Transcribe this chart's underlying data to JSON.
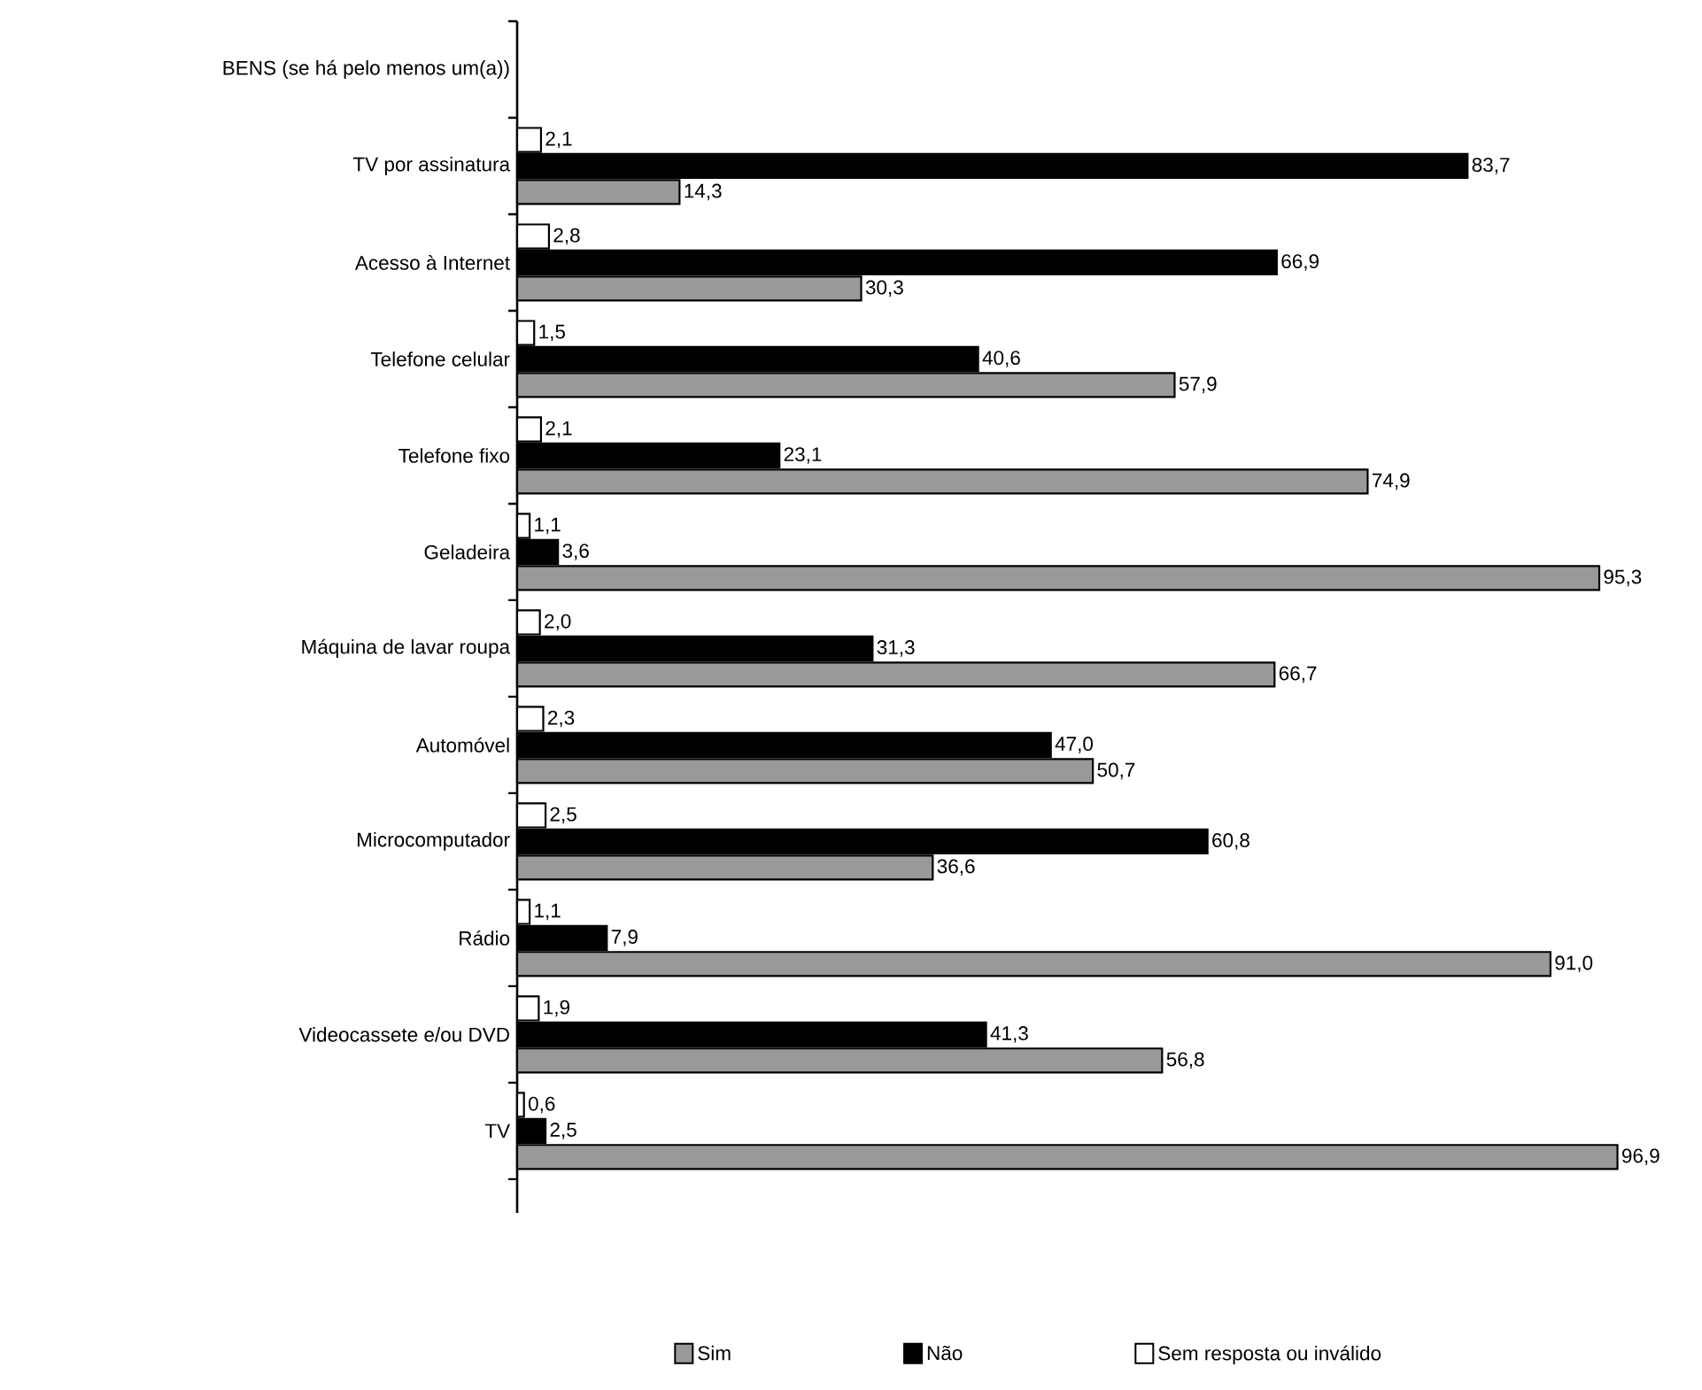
{
  "chart_data": {
    "type": "bar",
    "orientation": "horizontal",
    "legend": "bottom",
    "categories": [
      "BENS (se há pelo menos um(a))",
      "TV por assinatura",
      "Acesso à Internet",
      "Telefone celular",
      "Telefone fixo",
      "Geladeira",
      "Máquina de lavar roupa",
      "Automóvel",
      "Microcomputador",
      "Rádio",
      "Videocassete e/ou DVD",
      "TV"
    ],
    "series": [
      {
        "name": "Sim",
        "color": "#999999",
        "values": [
          null,
          14.3,
          30.3,
          57.9,
          74.9,
          95.3,
          66.7,
          50.7,
          36.6,
          91.0,
          56.8,
          96.9
        ],
        "value_labels": [
          null,
          "14,3",
          "30,3",
          "57,9",
          "74,9",
          "95,3",
          "66,7",
          "50,7",
          "36,6",
          "91,0",
          "56,8",
          "96,9"
        ]
      },
      {
        "name": "Não",
        "color": "#000000",
        "values": [
          null,
          83.7,
          66.9,
          40.6,
          23.1,
          3.6,
          31.3,
          47.0,
          60.8,
          7.9,
          41.3,
          2.5
        ],
        "value_labels": [
          null,
          "83,7",
          "66,9",
          "40,6",
          "23,1",
          "3,6",
          "31,3",
          "47,0",
          "60,8",
          "7,9",
          "41,3",
          "2,5"
        ]
      },
      {
        "name": "Sem resposta ou inválido",
        "color": "#ffffff",
        "values": [
          null,
          2.1,
          2.8,
          1.5,
          2.1,
          1.1,
          2.0,
          2.3,
          2.5,
          1.1,
          1.9,
          0.6
        ],
        "value_labels": [
          null,
          "2,1",
          "2,8",
          "1,5",
          "2,1",
          "1,1",
          "2,0",
          "2,3",
          "2,5",
          "1,1",
          "1,9",
          "0,6"
        ]
      }
    ]
  }
}
